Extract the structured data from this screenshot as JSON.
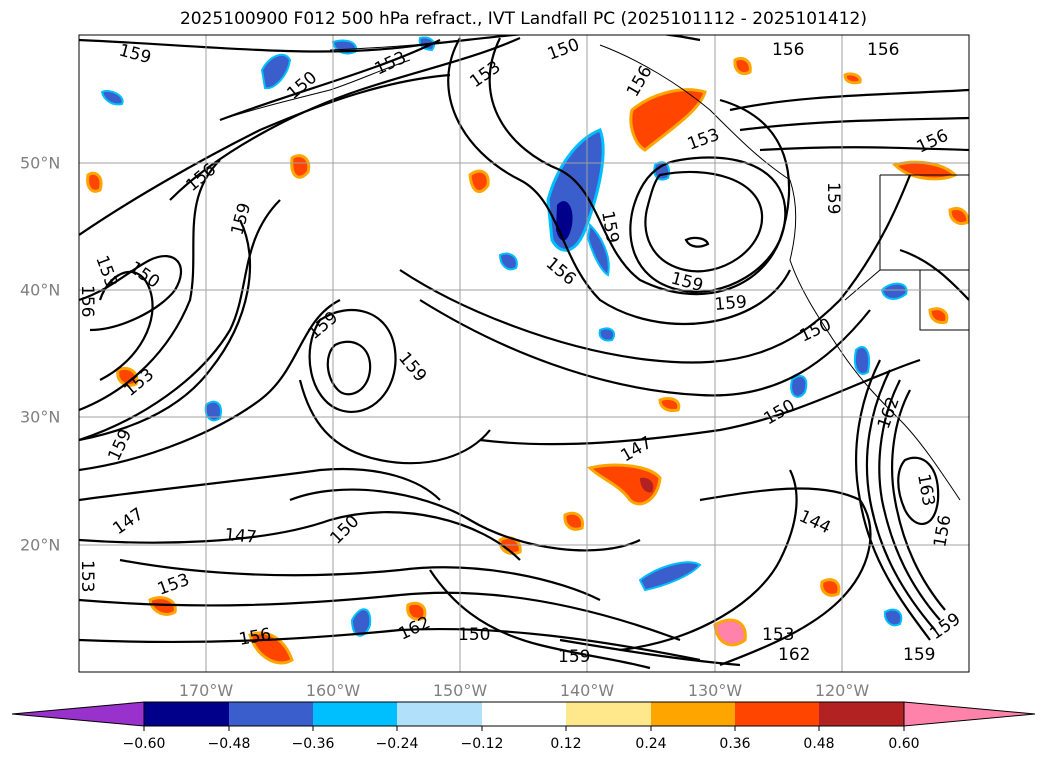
{
  "title": "2025100900 F012 500 hPa refract., IVT Landfall PC (2025101112 - 2025101412)",
  "map": {
    "type": "filled contour map",
    "lon_labels": [
      "170°W",
      "160°W",
      "150°W",
      "140°W",
      "130°W",
      "120°W"
    ],
    "lat_labels": [
      "50°N",
      "40°N",
      "30°N",
      "20°N"
    ],
    "contour_labels": [
      "159",
      "156",
      "150",
      "153",
      "150",
      "156",
      "156",
      "156",
      "153",
      "159",
      "156",
      "150",
      "153",
      "153",
      "159",
      "156",
      "159",
      "159",
      "159",
      "150",
      "159",
      "159",
      "150",
      "153",
      "159",
      "159",
      "147",
      "150",
      "147",
      "147",
      "150",
      "144",
      "153",
      "153",
      "153",
      "156",
      "162",
      "150",
      "159",
      "153",
      "162",
      "159",
      "162",
      "163",
      "156",
      "153",
      "150"
    ],
    "line_color": "#000000",
    "grid_color": "#a0a0a0"
  },
  "colorbar": {
    "ticks": [
      "−0.60",
      "−0.48",
      "−0.36",
      "−0.24",
      "−0.12",
      "0.12",
      "0.24",
      "0.36",
      "0.48",
      "0.60"
    ],
    "colors": [
      "#9932cc",
      "#00008b",
      "#3a5fcd",
      "#00bfff",
      "#b0e0fa",
      "#ffffff",
      "#ffe88c",
      "#ffa500",
      "#ff4500",
      "#b22222",
      "#ff82ab"
    ]
  }
}
